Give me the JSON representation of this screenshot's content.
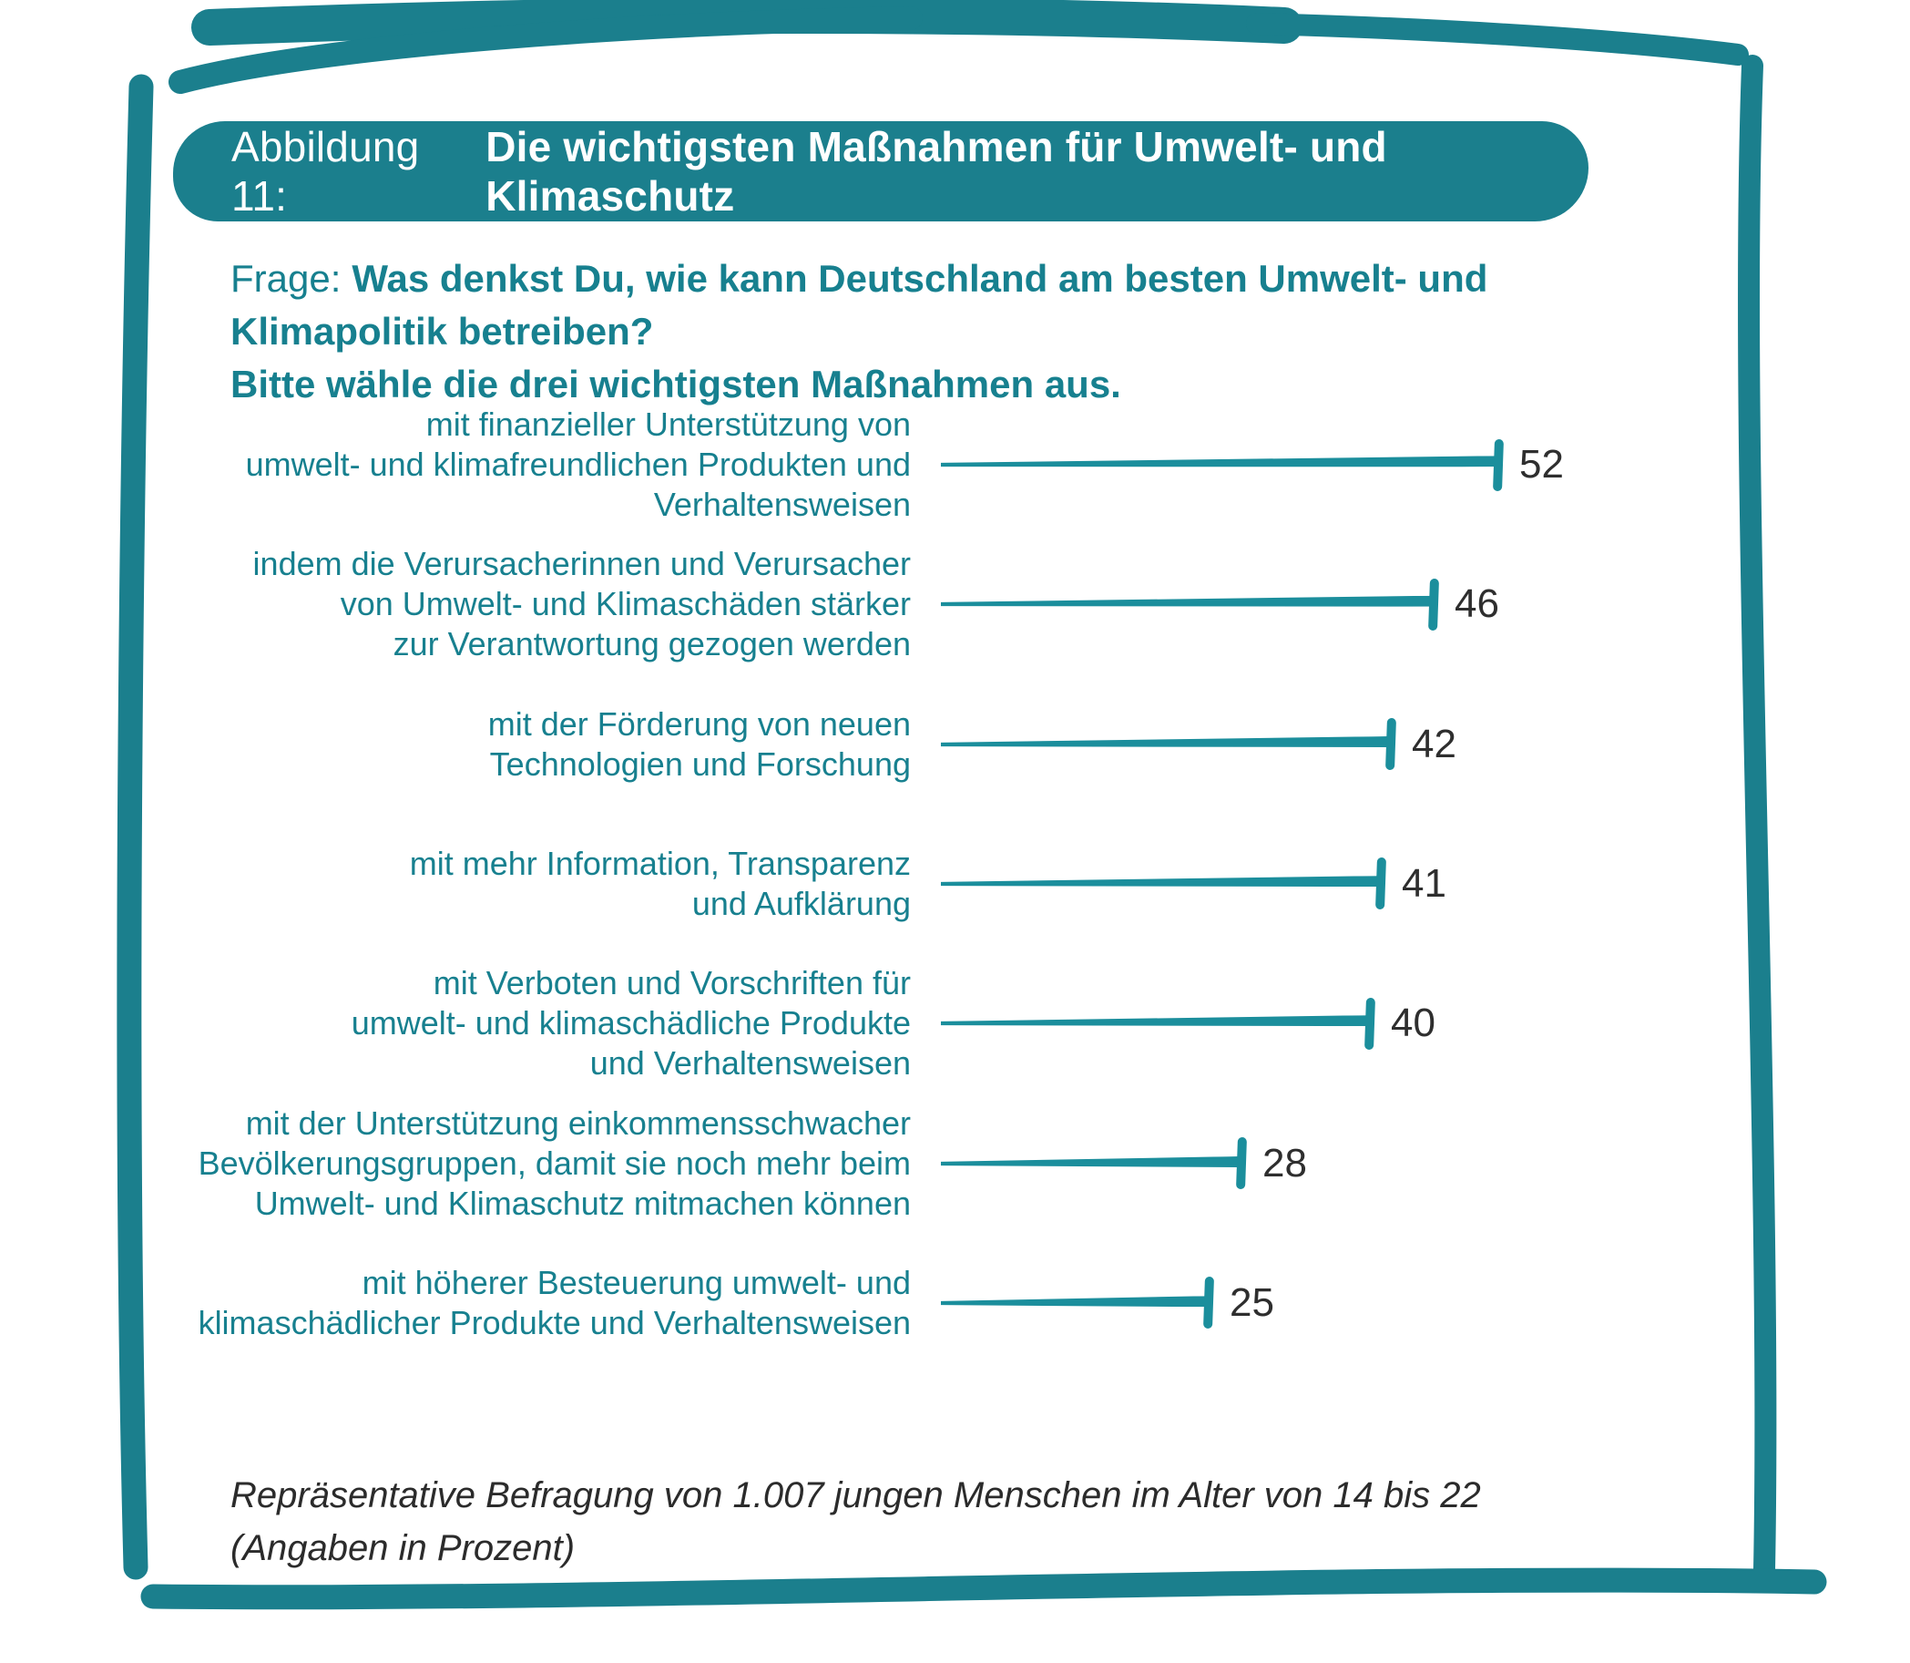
{
  "colors": {
    "accent": "#1B7F8D",
    "bar": "#1B8E9C",
    "teal_text": "#17808F",
    "value_text": "#2E2E2E"
  },
  "title": {
    "prefix": "Abbildung 11:",
    "text": "Die wichtigsten Maßnahmen für Umwelt- und Klimaschutz"
  },
  "question": {
    "prefix": "Frage:",
    "line1": "Was denkst Du, wie kann Deutschland am besten Umwelt- und Klimapolitik betreiben?",
    "line2": "Bitte wähle die drei wichtigsten Maßnahmen aus."
  },
  "footnote": {
    "line1": "Repräsentative Befragung von 1.007 jungen Menschen im Alter von 14 bis 22",
    "line2": "(Angaben in Prozent)"
  },
  "chart_data": {
    "type": "bar",
    "orientation": "horizontal",
    "title": "Abbildung 11: Die wichtigsten Maßnahmen für Umwelt- und Klimaschutz",
    "subtitle": "Frage: Was denkst Du, wie kann Deutschland am besten Umwelt- und Klimapolitik betreiben? Bitte wähle die drei wichtigsten Maßnahmen aus.",
    "unit": "percent",
    "xlim": [
      0,
      55
    ],
    "grid": false,
    "legend": false,
    "value_labels": "end-of-bar",
    "categories": [
      "mit finanzieller Unterstützung von umwelt- und klimafreundlichen Produkten und Verhaltensweisen",
      "indem die Verursacherinnen und Verursacher von Umwelt- und Klimaschäden stärker zur Verantwortung gezogen werden",
      "mit der Förderung von neuen Technologien und Forschung",
      "mit mehr Information, Transparenz und Aufklärung",
      "mit Verboten und Vorschriften für umwelt- und klimaschädliche Produkte und Verhaltensweisen",
      "mit der Unterstützung einkommensschwacher Bevölkerungsgruppen, damit sie noch mehr beim Umwelt- und Klimaschutz mitmachen können",
      "mit höherer Besteuerung umwelt- und klimaschädlicher Produkte und Verhaltensweisen"
    ],
    "label_lines": [
      [
        "mit finanzieller Unterstützung von",
        "umwelt- und klimafreundlichen Produkten und",
        "Verhaltensweisen"
      ],
      [
        "indem die Verursacherinnen und Verursacher",
        "von Umwelt- und Klimaschäden stärker",
        "zur Verantwortung gezogen werden"
      ],
      [
        "mit der Förderung von neuen",
        "Technologien und Forschung"
      ],
      [
        "mit mehr Information, Transparenz",
        "und Aufklärung"
      ],
      [
        "mit Verboten und Vorschriften für",
        "umwelt- und klimaschädliche Produkte",
        "und Verhaltensweisen"
      ],
      [
        "mit der Unterstützung einkommensschwacher",
        "Bevölkerungsgruppen, damit sie noch mehr beim",
        "Umwelt- und Klimaschutz mitmachen können"
      ],
      [
        "mit höherer Besteuerung umwelt- und",
        "klimaschädlicher Produkte und Verhaltensweisen"
      ]
    ],
    "values": [
      52,
      46,
      42,
      41,
      40,
      28,
      25
    ],
    "note": "Repräsentative Befragung von 1.007 jungen Menschen im Alter von 14 bis 22 (Angaben in Prozent)"
  }
}
